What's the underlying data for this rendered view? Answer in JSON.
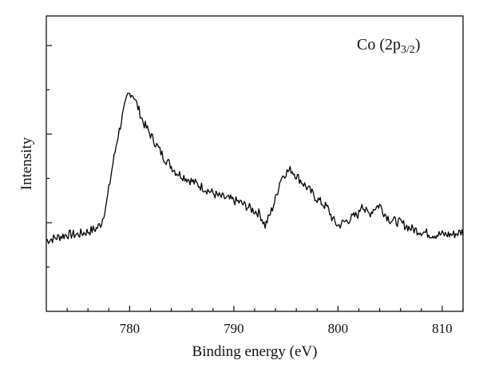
{
  "chart_data": {
    "type": "line",
    "title": "",
    "xlabel": "Binding energy (eV)",
    "ylabel": "Intensity",
    "xlim": [
      772,
      812
    ],
    "ylim": [
      0,
      100
    ],
    "x_ticks": [
      780,
      790,
      800,
      810
    ],
    "x_tick_labels": [
      "780",
      "790",
      "800",
      "810"
    ],
    "y_ticks": [
      15,
      30,
      45,
      60,
      75,
      90
    ],
    "y_tick_labels_shown": false,
    "grid": false,
    "annotation": {
      "main": "Co (2p",
      "subscript": "3/2",
      "close": ")",
      "position": "top-right"
    },
    "series": [
      {
        "color": "#000000",
        "x": [
          772,
          773,
          774,
          775,
          776,
          776.8,
          777.3,
          777.8,
          778.3,
          778.8,
          779.3,
          779.8,
          780.1,
          780.4,
          780.8,
          781.3,
          781.8,
          782.3,
          782.8,
          783.3,
          783.8,
          784.5,
          785.5,
          786.5,
          787.5,
          788.5,
          789.5,
          790.5,
          791.5,
          792.5,
          793.0,
          793.5,
          794.0,
          794.5,
          795.0,
          795.5,
          796.0,
          796.5,
          797.0,
          797.5,
          798.0,
          799.0,
          799.5,
          800.0,
          800.5,
          801.0,
          801.5,
          802.0,
          802.3,
          802.6,
          803.0,
          803.5,
          804.0,
          804.5,
          805.0,
          806.0,
          807.0,
          808.0,
          809.0,
          810.0,
          811.0,
          812.0
        ],
        "y": [
          24,
          25,
          26,
          26,
          27,
          28,
          30,
          37,
          48,
          58,
          66,
          73,
          74,
          73,
          69,
          64,
          61,
          58,
          55,
          52,
          50,
          47,
          45,
          43,
          41,
          39,
          38,
          37,
          35,
          33,
          29,
          33,
          38,
          45,
          47,
          48,
          46,
          44,
          42,
          40,
          38,
          35,
          31,
          29,
          30,
          31,
          32,
          33,
          37,
          34,
          33,
          35,
          36,
          33,
          31,
          30,
          28,
          27,
          26,
          26,
          26,
          27
        ],
        "noise": 1.6
      }
    ]
  }
}
